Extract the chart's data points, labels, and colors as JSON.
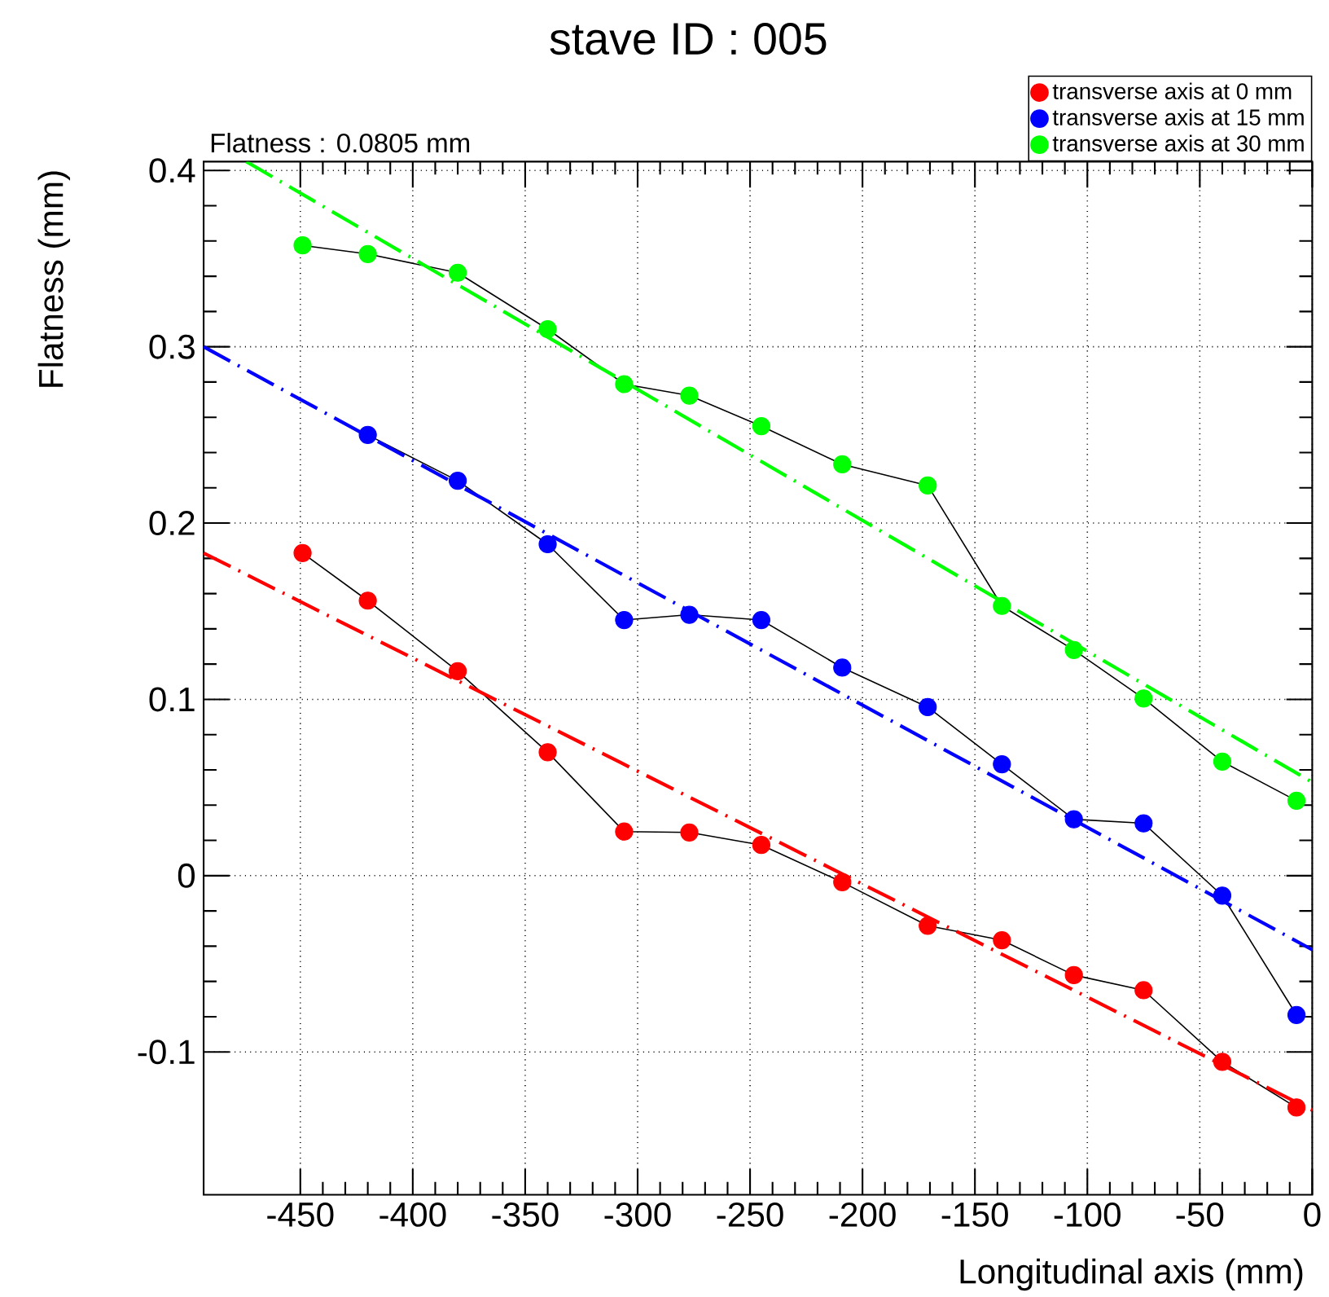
{
  "chart_data": {
    "type": "line",
    "title": "stave ID : 005",
    "xlabel": "Longitudinal axis (mm)",
    "ylabel": "Flatness (mm)",
    "annotations": [
      "Flatness : 0.0805 mm"
    ],
    "x": [
      -449,
      -420,
      -380,
      -340,
      -306,
      -277,
      -245,
      -209,
      -171,
      -138,
      -106,
      -75,
      -40,
      -7
    ],
    "series": [
      {
        "name": "transverse axis at 0  mm",
        "color": "#ff0000",
        "values": [
          0.183,
          0.156,
          0.116,
          0.07,
          0.025,
          0.0245,
          0.0174,
          -0.0037,
          -0.0284,
          -0.0366,
          -0.0564,
          -0.065,
          -0.1056,
          -0.1315
        ]
      },
      {
        "name": "transverse axis at 15 mm",
        "color": "#0000ff",
        "values": [
          null,
          0.25,
          0.224,
          0.188,
          0.145,
          0.148,
          0.145,
          0.118,
          0.0956,
          0.0632,
          0.032,
          0.0297,
          -0.0113,
          -0.079
        ]
      },
      {
        "name": "transverse axis at 30 mm",
        "color": "#00ff00",
        "values": [
          0.3575,
          0.3526,
          0.342,
          0.31,
          0.2788,
          0.2723,
          0.255,
          0.2333,
          0.2213,
          0.153,
          0.128,
          0.1005,
          0.0647,
          0.0425
        ]
      },
      {
        "type": "line",
        "color": "#ff0000",
        "line_style": "dashed",
        "marker": "none",
        "x": [
          -493,
          0
        ],
        "values": [
          0.183,
          -0.133
        ]
      },
      {
        "type": "line",
        "color": "#0000ff",
        "line_style": "dashed",
        "marker": "none",
        "x": [
          -493,
          0
        ],
        "values": [
          0.3,
          -0.042
        ]
      },
      {
        "type": "line",
        "color": "#00ff00",
        "line_style": "dashed",
        "marker": "none",
        "x": [
          -474,
          0
        ],
        "values": [
          0.405,
          0.053
        ]
      }
    ],
    "xlim": [
      -493,
      0
    ],
    "ylim": [
      -0.181,
      0.405
    ],
    "xticks": [
      -450,
      -400,
      -350,
      -300,
      -250,
      -200,
      -150,
      -100,
      -50,
      0
    ],
    "yticks": [
      -0.1,
      0,
      0.1,
      0.2,
      0.3,
      0.4
    ],
    "grid": true,
    "legend": "top right",
    "marker": "circle"
  }
}
